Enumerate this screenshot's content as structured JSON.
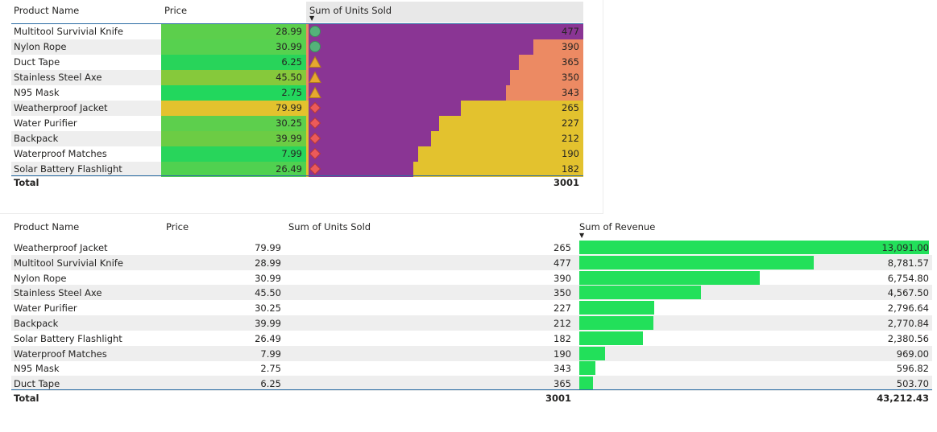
{
  "table1": {
    "headers": {
      "product": "Product Name",
      "price": "Price",
      "units": "Sum of Units Sold"
    },
    "rows": [
      {
        "name": "Multitool Survivial Knife",
        "price": "28.99",
        "units": "477",
        "units_value": 477,
        "price_color": "#5ccf4c",
        "icon": "circle",
        "remainder_color": "#ec8a63"
      },
      {
        "name": "Nylon Rope",
        "price": "30.99",
        "units": "390",
        "units_value": 390,
        "price_color": "#57d14f",
        "icon": "circle",
        "remainder_color": "#ec8a63"
      },
      {
        "name": "Duct Tape",
        "price": "6.25",
        "units": "365",
        "units_value": 365,
        "price_color": "#28d45a",
        "icon": "triangle",
        "remainder_color": "#ec8a63"
      },
      {
        "name": "Stainless Steel Axe",
        "price": "45.50",
        "units": "350",
        "units_value": 350,
        "price_color": "#86c93b",
        "icon": "triangle",
        "remainder_color": "#ec8a63"
      },
      {
        "name": "N95 Mask",
        "price": "2.75",
        "units": "343",
        "units_value": 343,
        "price_color": "#22d75d",
        "icon": "triangle",
        "remainder_color": "#ec8a63"
      },
      {
        "name": "Weatherproof Jacket",
        "price": "79.99",
        "units": "265",
        "units_value": 265,
        "price_color": "#e3c22e",
        "icon": "diamond",
        "remainder_color": "#e3c22e"
      },
      {
        "name": "Water Purifier",
        "price": "30.25",
        "units": "227",
        "units_value": 227,
        "price_color": "#5dcf4d",
        "icon": "diamond",
        "remainder_color": "#e3c22e"
      },
      {
        "name": "Backpack",
        "price": "39.99",
        "units": "212",
        "units_value": 212,
        "price_color": "#6ccc44",
        "icon": "diamond",
        "remainder_color": "#e3c22e"
      },
      {
        "name": "Waterproof Matches",
        "price": "7.99",
        "units": "190",
        "units_value": 190,
        "price_color": "#28d55b",
        "icon": "diamond",
        "remainder_color": "#e3c22e"
      },
      {
        "name": "Solar Battery Flashlight",
        "price": "26.49",
        "units": "182",
        "units_value": 182,
        "price_color": "#50d150",
        "icon": "diamond",
        "remainder_color": "#e3c22e"
      }
    ],
    "total": {
      "label": "Total",
      "units": "3001"
    },
    "bar_max": 477,
    "bar_color": "#8a3594"
  },
  "table2": {
    "headers": {
      "product": "Product Name",
      "price": "Price",
      "units": "Sum of Units Sold",
      "revenue": "Sum of Revenue"
    },
    "rows": [
      {
        "name": "Weatherproof Jacket",
        "price": "79.99",
        "units": "265",
        "revenue": "13,091.00",
        "revenue_value": 13091.0
      },
      {
        "name": "Multitool Survivial Knife",
        "price": "28.99",
        "units": "477",
        "revenue": "8,781.57",
        "revenue_value": 8781.57
      },
      {
        "name": "Nylon Rope",
        "price": "30.99",
        "units": "390",
        "revenue": "6,754.80",
        "revenue_value": 6754.8
      },
      {
        "name": "Stainless Steel Axe",
        "price": "45.50",
        "units": "350",
        "revenue": "4,567.50",
        "revenue_value": 4567.5
      },
      {
        "name": "Water Purifier",
        "price": "30.25",
        "units": "227",
        "revenue": "2,796.64",
        "revenue_value": 2796.64
      },
      {
        "name": "Backpack",
        "price": "39.99",
        "units": "212",
        "revenue": "2,770.84",
        "revenue_value": 2770.84
      },
      {
        "name": "Solar Battery Flashlight",
        "price": "26.49",
        "units": "182",
        "revenue": "2,380.56",
        "revenue_value": 2380.56
      },
      {
        "name": "Waterproof Matches",
        "price": "7.99",
        "units": "190",
        "revenue": "969.00",
        "revenue_value": 969.0
      },
      {
        "name": "N95 Mask",
        "price": "2.75",
        "units": "343",
        "revenue": "596.82",
        "revenue_value": 596.82
      },
      {
        "name": "Duct Tape",
        "price": "6.25",
        "units": "365",
        "revenue": "503.70",
        "revenue_value": 503.7
      }
    ],
    "total": {
      "label": "Total",
      "units": "3001",
      "revenue": "43,212.43"
    },
    "bar_max": 13091.0,
    "bar_color": "#22e05a"
  },
  "colors": {
    "header_sorted_bg": "#e8e8e8",
    "stripe": "#eeeeee",
    "rule": "#2b6ca3",
    "circle_icon": "#54b27a",
    "triangle_icon": "#e6a72f",
    "diamond_icon": "#ec5a5a"
  }
}
